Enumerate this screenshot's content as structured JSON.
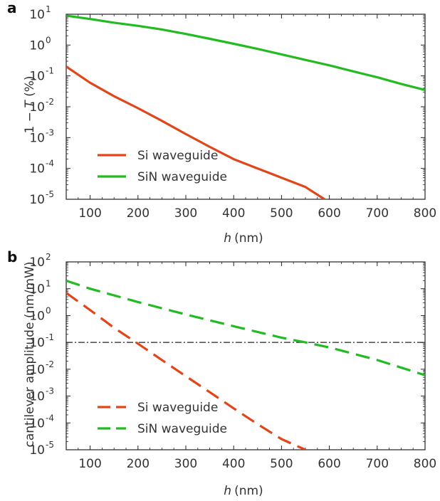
{
  "chart_data": [
    {
      "panel": "a",
      "type": "line",
      "xlabel": {
        "var": "h",
        "unit": "(nm)"
      },
      "ylabel": {
        "left": "1 − ",
        "var": "T",
        "right": "  (%)"
      },
      "xlim": [
        50,
        800
      ],
      "ylim": [
        1e-05,
        10
      ],
      "y_scale": "log",
      "x_ticks": [
        100,
        200,
        300,
        400,
        500,
        600,
        700,
        800
      ],
      "y_ticks": [
        {
          "base": "10",
          "exp": "1"
        },
        {
          "base": "10",
          "exp": "0"
        },
        {
          "base": "10",
          "exp": "-1"
        },
        {
          "base": "10",
          "exp": "-2"
        },
        {
          "base": "10",
          "exp": "-3"
        },
        {
          "base": "10",
          "exp": "-4"
        },
        {
          "base": "10",
          "exp": "-5"
        }
      ],
      "legend_position": "bottom-left",
      "series": [
        {
          "name": "Si waveguide",
          "color": "#e1461b",
          "dash": "solid",
          "points": [
            [
              50,
              0.2
            ],
            [
              100,
              0.06
            ],
            [
              150,
              0.022
            ],
            [
              200,
              0.009
            ],
            [
              250,
              0.0035
            ],
            [
              300,
              0.0013
            ],
            [
              350,
              0.0005
            ],
            [
              400,
              0.0002
            ],
            [
              450,
              0.0001
            ],
            [
              500,
              5e-05
            ],
            [
              550,
              2.5e-05
            ],
            [
              590,
              1e-05
            ]
          ]
        },
        {
          "name": "SiN waveguide",
          "color": "#22bb22",
          "dash": "solid",
          "points": [
            [
              50,
              9.0
            ],
            [
              100,
              7.0
            ],
            [
              150,
              5.3
            ],
            [
              200,
              4.2
            ],
            [
              250,
              3.2
            ],
            [
              300,
              2.3
            ],
            [
              350,
              1.6
            ],
            [
              400,
              1.1
            ],
            [
              450,
              0.75
            ],
            [
              500,
              0.5
            ],
            [
              550,
              0.33
            ],
            [
              600,
              0.22
            ],
            [
              650,
              0.14
            ],
            [
              700,
              0.09
            ],
            [
              750,
              0.055
            ],
            [
              800,
              0.035
            ]
          ]
        }
      ]
    },
    {
      "panel": "b",
      "type": "line",
      "xlabel": {
        "var": "h",
        "unit": "(nm)"
      },
      "ylabel": {
        "text": "cantilever amplitude (nm/mW)"
      },
      "xlim": [
        50,
        800
      ],
      "ylim": [
        1e-05,
        100
      ],
      "y_scale": "log",
      "x_ticks": [
        100,
        200,
        300,
        400,
        500,
        600,
        700,
        800
      ],
      "y_ticks": [
        {
          "base": "10",
          "exp": "2"
        },
        {
          "base": "10",
          "exp": "1"
        },
        {
          "base": "10",
          "exp": "0"
        },
        {
          "base": "10",
          "exp": "-1"
        },
        {
          "base": "10",
          "exp": "-2"
        },
        {
          "base": "10",
          "exp": "-3"
        },
        {
          "base": "10",
          "exp": "-4"
        },
        {
          "base": "10",
          "exp": "-5"
        }
      ],
      "legend_position": "bottom-left",
      "reference_lines": [
        {
          "y": 0.1,
          "color": "#222222",
          "dash": "dashdot"
        }
      ],
      "series": [
        {
          "name": "Si waveguide",
          "color": "#e1461b",
          "dash": "dashed",
          "points": [
            [
              50,
              7.0
            ],
            [
              100,
              1.6
            ],
            [
              150,
              0.35
            ],
            [
              200,
              0.09
            ],
            [
              250,
              0.022
            ],
            [
              300,
              0.0055
            ],
            [
              350,
              0.0014
            ],
            [
              400,
              0.00035
            ],
            [
              450,
              9e-05
            ],
            [
              500,
              2.5e-05
            ],
            [
              550,
              1e-05
            ]
          ]
        },
        {
          "name": "SiN waveguide",
          "color": "#22bb22",
          "dash": "dashed",
          "points": [
            [
              50,
              20
            ],
            [
              100,
              10
            ],
            [
              200,
              3.2
            ],
            [
              300,
              1.1
            ],
            [
              400,
              0.4
            ],
            [
              500,
              0.15
            ],
            [
              550,
              0.1
            ],
            [
              600,
              0.065
            ],
            [
              700,
              0.022
            ],
            [
              800,
              0.006
            ]
          ]
        }
      ]
    }
  ]
}
